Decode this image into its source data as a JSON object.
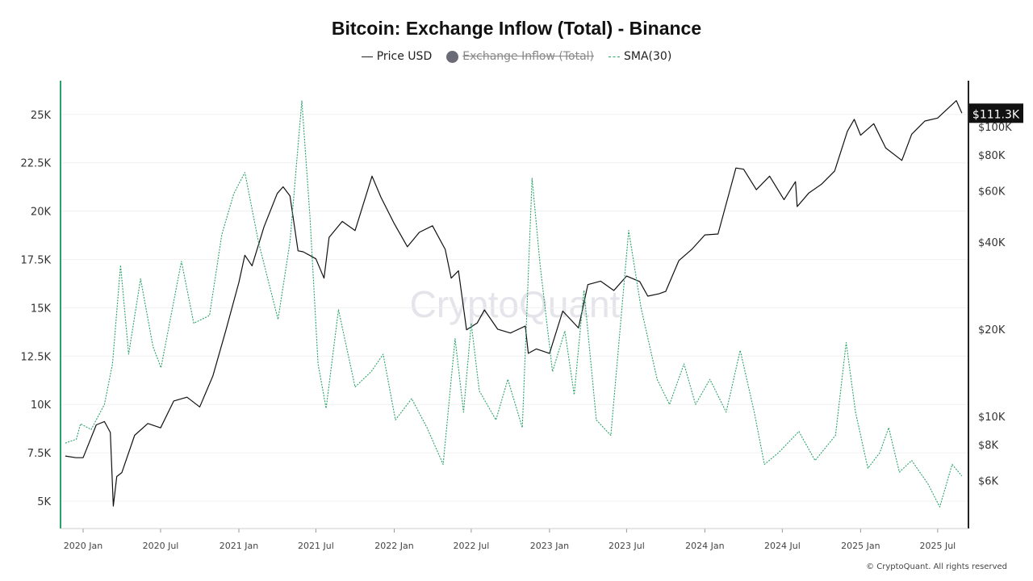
{
  "chart_data": {
    "type": "line",
    "title": "Bitcoin: Exchange Inflow (Total) - Binance",
    "legend": [
      {
        "name": "Price USD",
        "color": "#111111",
        "style": "solid",
        "hidden": false
      },
      {
        "name": "Exchange Inflow (Total)",
        "color": "#6b6b78",
        "style": "dot",
        "hidden": true
      },
      {
        "name": "SMA(30)",
        "color": "#2aa36a",
        "style": "dashed",
        "hidden": false
      }
    ],
    "legend_position": "top-center",
    "x_ticks": [
      "2020 Jan",
      "2020 Jul",
      "2021 Jan",
      "2021 Jul",
      "2022 Jan",
      "2022 Jul",
      "2023 Jan",
      "2023 Jul",
      "2024 Jan",
      "2024 Jul",
      "2025 Jan",
      "2025 Jul"
    ],
    "x_tick_dates": [
      "2020-01-01",
      "2020-07-01",
      "2021-01-01",
      "2021-07-01",
      "2022-01-01",
      "2022-07-01",
      "2023-01-01",
      "2023-07-01",
      "2024-01-01",
      "2024-07-01",
      "2025-01-01",
      "2025-07-01"
    ],
    "left_axis": {
      "ticks": [
        "5K",
        "7.5K",
        "10K",
        "12.5K",
        "15K",
        "17.5K",
        "20K",
        "22.5K",
        "25K"
      ],
      "tick_values": [
        5000,
        7500,
        10000,
        12500,
        15000,
        17500,
        20000,
        22500,
        25000
      ],
      "color": "#2aa36a"
    },
    "right_axis": {
      "scale": "log",
      "ticks": [
        "$6K",
        "$8K",
        "$10K",
        "$20K",
        "$40K",
        "$60K",
        "$80K",
        "$100K"
      ],
      "tick_values": [
        6000,
        8000,
        10000,
        20000,
        40000,
        60000,
        80000,
        100000
      ]
    },
    "last_price_label": "$111.3K",
    "grid": true,
    "watermark": "CryptoQuant",
    "series": [
      {
        "name": "Price USD",
        "axis": "right",
        "points": [
          [
            "2019-11-20",
            7300
          ],
          [
            "2019-12-15",
            7200
          ],
          [
            "2020-01-01",
            7200
          ],
          [
            "2020-02-01",
            9350
          ],
          [
            "2020-02-20",
            9600
          ],
          [
            "2020-03-05",
            8800
          ],
          [
            "2020-03-12",
            4900
          ],
          [
            "2020-03-20",
            6200
          ],
          [
            "2020-04-01",
            6400
          ],
          [
            "2020-05-01",
            8600
          ],
          [
            "2020-06-01",
            9450
          ],
          [
            "2020-07-01",
            9130
          ],
          [
            "2020-08-01",
            11300
          ],
          [
            "2020-09-01",
            11650
          ],
          [
            "2020-10-01",
            10780
          ],
          [
            "2020-11-01",
            13800
          ],
          [
            "2020-12-01",
            19700
          ],
          [
            "2021-01-01",
            29000
          ],
          [
            "2021-01-15",
            36000
          ],
          [
            "2021-02-01",
            33100
          ],
          [
            "2021-03-01",
            45100
          ],
          [
            "2021-04-01",
            58800
          ],
          [
            "2021-04-15",
            62000
          ],
          [
            "2021-05-01",
            57700
          ],
          [
            "2021-05-20",
            37300
          ],
          [
            "2021-06-01",
            37000
          ],
          [
            "2021-07-01",
            35000
          ],
          [
            "2021-07-20",
            30000
          ],
          [
            "2021-08-01",
            41500
          ],
          [
            "2021-09-01",
            47100
          ],
          [
            "2021-10-01",
            43800
          ],
          [
            "2021-11-01",
            61300
          ],
          [
            "2021-11-10",
            67500
          ],
          [
            "2021-12-01",
            57000
          ],
          [
            "2022-01-01",
            46300
          ],
          [
            "2022-02-01",
            38500
          ],
          [
            "2022-03-01",
            43200
          ],
          [
            "2022-04-01",
            45500
          ],
          [
            "2022-05-01",
            37700
          ],
          [
            "2022-05-15",
            30000
          ],
          [
            "2022-06-01",
            31800
          ],
          [
            "2022-06-20",
            19900
          ],
          [
            "2022-07-15",
            21000
          ],
          [
            "2022-08-01",
            23300
          ],
          [
            "2022-09-01",
            20000
          ],
          [
            "2022-10-01",
            19400
          ],
          [
            "2022-11-05",
            20500
          ],
          [
            "2022-11-12",
            16500
          ],
          [
            "2022-12-01",
            17100
          ],
          [
            "2023-01-01",
            16500
          ],
          [
            "2023-02-01",
            23100
          ],
          [
            "2023-03-10",
            20200
          ],
          [
            "2023-04-01",
            28500
          ],
          [
            "2023-05-01",
            29300
          ],
          [
            "2023-06-01",
            27200
          ],
          [
            "2023-07-01",
            30500
          ],
          [
            "2023-08-01",
            29200
          ],
          [
            "2023-08-20",
            26000
          ],
          [
            "2023-09-15",
            26500
          ],
          [
            "2023-10-01",
            27000
          ],
          [
            "2023-11-01",
            34500
          ],
          [
            "2023-12-01",
            37700
          ],
          [
            "2024-01-01",
            42300
          ],
          [
            "2024-02-01",
            42600
          ],
          [
            "2024-03-01",
            61200
          ],
          [
            "2024-03-14",
            72000
          ],
          [
            "2024-04-01",
            71300
          ],
          [
            "2024-05-01",
            60600
          ],
          [
            "2024-06-01",
            67500
          ],
          [
            "2024-07-05",
            56000
          ],
          [
            "2024-08-01",
            64600
          ],
          [
            "2024-08-05",
            53000
          ],
          [
            "2024-09-01",
            59000
          ],
          [
            "2024-10-01",
            63300
          ],
          [
            "2024-11-01",
            70300
          ],
          [
            "2024-12-01",
            96400
          ],
          [
            "2024-12-17",
            106000
          ],
          [
            "2025-01-01",
            93400
          ],
          [
            "2025-02-01",
            102400
          ],
          [
            "2025-03-01",
            84400
          ],
          [
            "2025-04-08",
            76500
          ],
          [
            "2025-05-01",
            94200
          ],
          [
            "2025-06-01",
            104600
          ],
          [
            "2025-07-01",
            107100
          ],
          [
            "2025-08-14",
            123000
          ],
          [
            "2025-08-27",
            111300
          ]
        ]
      },
      {
        "name": "SMA(30)",
        "axis": "left",
        "points": [
          [
            "2019-11-20",
            8000
          ],
          [
            "2019-12-16",
            8200
          ],
          [
            "2019-12-26",
            9000
          ],
          [
            "2020-01-20",
            8700
          ],
          [
            "2020-02-20",
            10000
          ],
          [
            "2020-03-10",
            12100
          ],
          [
            "2020-03-29",
            17200
          ],
          [
            "2020-04-17",
            12600
          ],
          [
            "2020-05-15",
            16500
          ],
          [
            "2020-06-13",
            13000
          ],
          [
            "2020-07-02",
            11900
          ],
          [
            "2020-08-19",
            17400
          ],
          [
            "2020-09-17",
            14200
          ],
          [
            "2020-10-24",
            14600
          ],
          [
            "2020-11-22",
            18800
          ],
          [
            "2020-12-20",
            20900
          ],
          [
            "2021-01-15",
            22000
          ],
          [
            "2021-02-16",
            18400
          ],
          [
            "2021-04-03",
            14400
          ],
          [
            "2021-05-01",
            18400
          ],
          [
            "2021-05-29",
            25700
          ],
          [
            "2021-06-17",
            19700
          ],
          [
            "2021-07-06",
            12100
          ],
          [
            "2021-07-25",
            9800
          ],
          [
            "2021-08-23",
            14900
          ],
          [
            "2021-10-01",
            10900
          ],
          [
            "2021-11-08",
            11700
          ],
          [
            "2021-12-06",
            12600
          ],
          [
            "2022-01-04",
            9200
          ],
          [
            "2022-02-11",
            10300
          ],
          [
            "2022-03-19",
            8800
          ],
          [
            "2022-04-26",
            6900
          ],
          [
            "2022-05-24",
            13400
          ],
          [
            "2022-06-13",
            9600
          ],
          [
            "2022-07-01",
            14200
          ],
          [
            "2022-07-20",
            10700
          ],
          [
            "2022-08-28",
            9200
          ],
          [
            "2022-09-25",
            11300
          ],
          [
            "2022-10-29",
            8800
          ],
          [
            "2022-11-21",
            21700
          ],
          [
            "2022-12-10",
            17200
          ],
          [
            "2023-01-08",
            11700
          ],
          [
            "2023-02-06",
            13800
          ],
          [
            "2023-02-28",
            10500
          ],
          [
            "2023-03-23",
            15900
          ],
          [
            "2023-04-21",
            9200
          ],
          [
            "2023-05-25",
            8400
          ],
          [
            "2023-07-06",
            19000
          ],
          [
            "2023-08-04",
            15000
          ],
          [
            "2023-09-11",
            11300
          ],
          [
            "2023-10-10",
            10000
          ],
          [
            "2023-11-13",
            12100
          ],
          [
            "2023-12-10",
            10000
          ],
          [
            "2024-01-13",
            11300
          ],
          [
            "2024-02-20",
            9600
          ],
          [
            "2024-03-24",
            12800
          ],
          [
            "2024-04-26",
            9600
          ],
          [
            "2024-05-20",
            6900
          ],
          [
            "2024-06-22",
            7500
          ],
          [
            "2024-08-09",
            8600
          ],
          [
            "2024-09-16",
            7100
          ],
          [
            "2024-11-03",
            8400
          ],
          [
            "2024-11-28",
            13200
          ],
          [
            "2024-12-20",
            9600
          ],
          [
            "2025-01-18",
            6700
          ],
          [
            "2025-02-15",
            7500
          ],
          [
            "2025-03-08",
            8800
          ],
          [
            "2025-04-02",
            6500
          ],
          [
            "2025-05-01",
            7100
          ],
          [
            "2025-06-08",
            5900
          ],
          [
            "2025-07-06",
            4700
          ],
          [
            "2025-08-04",
            6900
          ],
          [
            "2025-08-27",
            6300
          ]
        ]
      }
    ]
  },
  "footer": {
    "copyright": "© CryptoQuant. All rights reserved"
  }
}
